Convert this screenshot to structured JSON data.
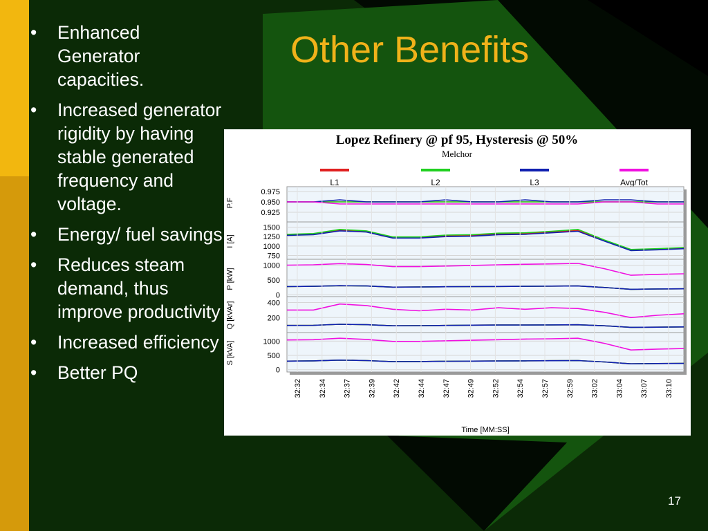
{
  "slide": {
    "title": "Other Benefits",
    "page_number": "17",
    "bullet_char": "•",
    "bullets": [
      "Enhanced Generator capacities.",
      "Increased generator rigidity by having stable generated frequency and voltage.",
      "Energy/ fuel savings",
      "Reduces steam demand, thus improve productivity",
      "Increased efficiency",
      "Better PQ"
    ],
    "colors": {
      "background": "#0b2a06",
      "accent_bar": "#f2b70f",
      "title": "#f0b21a",
      "text": "#ffffff"
    }
  },
  "chart_data": {
    "type": "line",
    "title": "Lopez Refinery @ pf  95, Hysteresis @ 50%",
    "subtitle": "Melchor",
    "xlabel": "Time [MM:SS]",
    "x_ticks": [
      "32:32",
      "32:34",
      "32:37",
      "32:39",
      "32:42",
      "32:44",
      "32:47",
      "32:49",
      "32:52",
      "32:54",
      "32:57",
      "32:59",
      "33:02",
      "33:04",
      "33:07",
      "33:10"
    ],
    "legend": [
      {
        "name": "L1",
        "color": "#e02020"
      },
      {
        "name": "L2",
        "color": "#20d020"
      },
      {
        "name": "L3",
        "color": "#1020b0"
      },
      {
        "name": "Avg/Tot",
        "color": "#f010e0"
      }
    ],
    "legend_placement": "top",
    "grid": true,
    "panels": [
      {
        "ylabel": "P.F",
        "yticks": [
          "0.975",
          "0.950",
          "0.925"
        ],
        "ylim": [
          0.91,
          0.985
        ],
        "series": [
          {
            "name": "L1",
            "values": [
              0.95,
              0.95,
              0.95,
              0.95,
              0.95,
              0.95,
              0.95,
              0.95,
              0.95,
              0.95,
              0.95,
              0.95,
              0.95,
              0.95,
              0.95,
              0.95
            ]
          },
          {
            "name": "L2",
            "values": [
              0.95,
              0.95,
              0.95,
              0.95,
              0.95,
              0.95,
              0.95,
              0.95,
              0.95,
              0.95,
              0.95,
              0.95,
              0.95,
              0.95,
              0.95,
              0.95
            ]
          },
          {
            "name": "L3",
            "values": [
              0.95,
              0.95,
              0.955,
              0.95,
              0.95,
              0.95,
              0.955,
              0.95,
              0.95,
              0.955,
              0.95,
              0.95,
              0.955,
              0.955,
              0.95,
              0.95
            ]
          },
          {
            "name": "Avg/Tot",
            "values": [
              0.95,
              0.95,
              0.945,
              0.945,
              0.945,
              0.945,
              0.945,
              0.945,
              0.945,
              0.945,
              0.945,
              0.945,
              0.95,
              0.95,
              0.945,
              0.945
            ]
          }
        ]
      },
      {
        "ylabel": "I [A]",
        "yticks": [
          "1500",
          "1250",
          "1000",
          "750"
        ],
        "ylim": [
          650,
          1600
        ],
        "series": [
          {
            "name": "L1",
            "values": [
              1300,
              1320,
              1420,
              1390,
              1230,
              1230,
              1270,
              1280,
              1320,
              1330,
              1370,
              1410,
              1150,
              900,
              920,
              950
            ]
          },
          {
            "name": "L2",
            "values": [
              1310,
              1330,
              1440,
              1400,
              1240,
              1240,
              1290,
              1300,
              1340,
              1350,
              1390,
              1440,
              1160,
              910,
              930,
              960
            ]
          },
          {
            "name": "L3",
            "values": [
              1280,
              1300,
              1400,
              1370,
              1210,
              1210,
              1250,
              1260,
              1300,
              1310,
              1350,
              1390,
              1130,
              880,
              900,
              930
            ]
          }
        ]
      },
      {
        "ylabel": "P [kW]",
        "yticks": [
          "1000",
          "500",
          "0"
        ],
        "ylim": [
          -80,
          1150
        ],
        "series": [
          {
            "name": "L1",
            "values": [
              280,
              290,
              310,
              300,
              260,
              265,
              275,
              280,
              285,
              290,
              295,
              300,
              250,
              190,
              200,
              205
            ]
          },
          {
            "name": "L2",
            "values": [
              280,
              290,
              310,
              300,
              260,
              265,
              275,
              280,
              285,
              290,
              295,
              300,
              250,
              190,
              200,
              205
            ]
          },
          {
            "name": "L3",
            "values": [
              280,
              290,
              310,
              300,
              260,
              265,
              275,
              280,
              285,
              290,
              295,
              300,
              250,
              190,
              200,
              205
            ]
          },
          {
            "name": "Avg/Tot",
            "values": [
              1000,
              1010,
              1050,
              1020,
              950,
              950,
              970,
              990,
              1010,
              1030,
              1040,
              1060,
              880,
              660,
              690,
              710
            ]
          }
        ]
      },
      {
        "ylabel": "Q [kVAr]",
        "yticks": [
          "400",
          "200"
        ],
        "ylim": [
          0,
          460
        ],
        "series": [
          {
            "name": "L1",
            "values": [
              95,
              97,
              110,
              105,
              90,
              92,
              95,
              98,
              100,
              100,
              102,
              104,
              90,
              70,
              72,
              75
            ]
          },
          {
            "name": "L2",
            "values": [
              95,
              97,
              110,
              105,
              90,
              92,
              95,
              98,
              100,
              100,
              102,
              104,
              90,
              70,
              72,
              75
            ]
          },
          {
            "name": "L3",
            "values": [
              95,
              97,
              110,
              105,
              90,
              92,
              95,
              98,
              100,
              100,
              102,
              104,
              90,
              70,
              72,
              75
            ]
          },
          {
            "name": "Avg/Tot",
            "values": [
              300,
              300,
              380,
              360,
              310,
              290,
              310,
              300,
              330,
              310,
              330,
              320,
              270,
              200,
              230,
              250
            ]
          }
        ]
      },
      {
        "ylabel": "S [kVA]",
        "yticks": [
          "1000",
          "500",
          "0"
        ],
        "ylim": [
          -80,
          1250
        ],
        "series": [
          {
            "name": "L1",
            "values": [
              300,
              310,
              335,
              320,
              280,
              285,
              295,
              300,
              305,
              310,
              315,
              320,
              270,
              205,
              215,
              220
            ]
          },
          {
            "name": "L2",
            "values": [
              300,
              310,
              335,
              320,
              280,
              285,
              295,
              300,
              305,
              310,
              315,
              320,
              270,
              205,
              215,
              220
            ]
          },
          {
            "name": "L3",
            "values": [
              300,
              310,
              335,
              320,
              280,
              285,
              295,
              300,
              305,
              310,
              315,
              320,
              270,
              205,
              215,
              220
            ]
          },
          {
            "name": "Avg/Tot",
            "values": [
              1040,
              1050,
              1100,
              1060,
              990,
              990,
              1010,
              1030,
              1050,
              1070,
              1080,
              1100,
              920,
              690,
              720,
              740
            ]
          }
        ]
      }
    ]
  }
}
